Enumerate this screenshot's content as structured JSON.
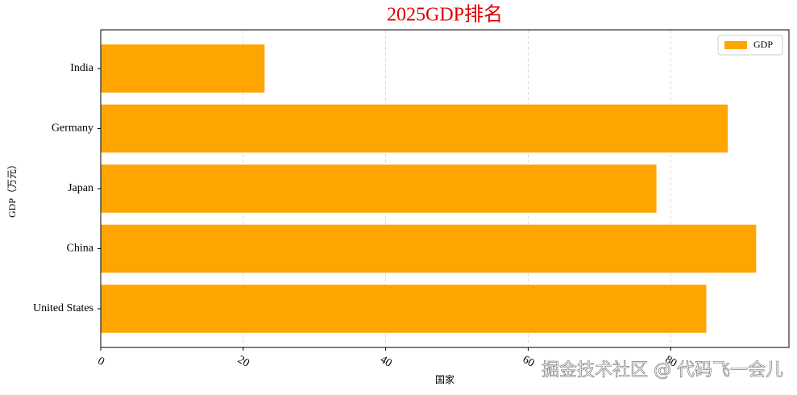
{
  "chart_data": {
    "type": "barh",
    "title": "2025GDP排名",
    "xlabel": "国家",
    "ylabel": "GDP（万元）",
    "categories": [
      "United States",
      "China",
      "Japan",
      "Germany",
      "India"
    ],
    "series": [
      {
        "name": "GDP",
        "color": "#ffa500",
        "values": [
          85,
          92,
          78,
          88,
          23
        ]
      }
    ],
    "xlim": [
      0,
      96.6
    ],
    "xticks": [
      0,
      20,
      40,
      60,
      80
    ],
    "grid": true,
    "legend": "upper right",
    "watermark": "掘金技术社区 @ 代码飞一会儿"
  }
}
